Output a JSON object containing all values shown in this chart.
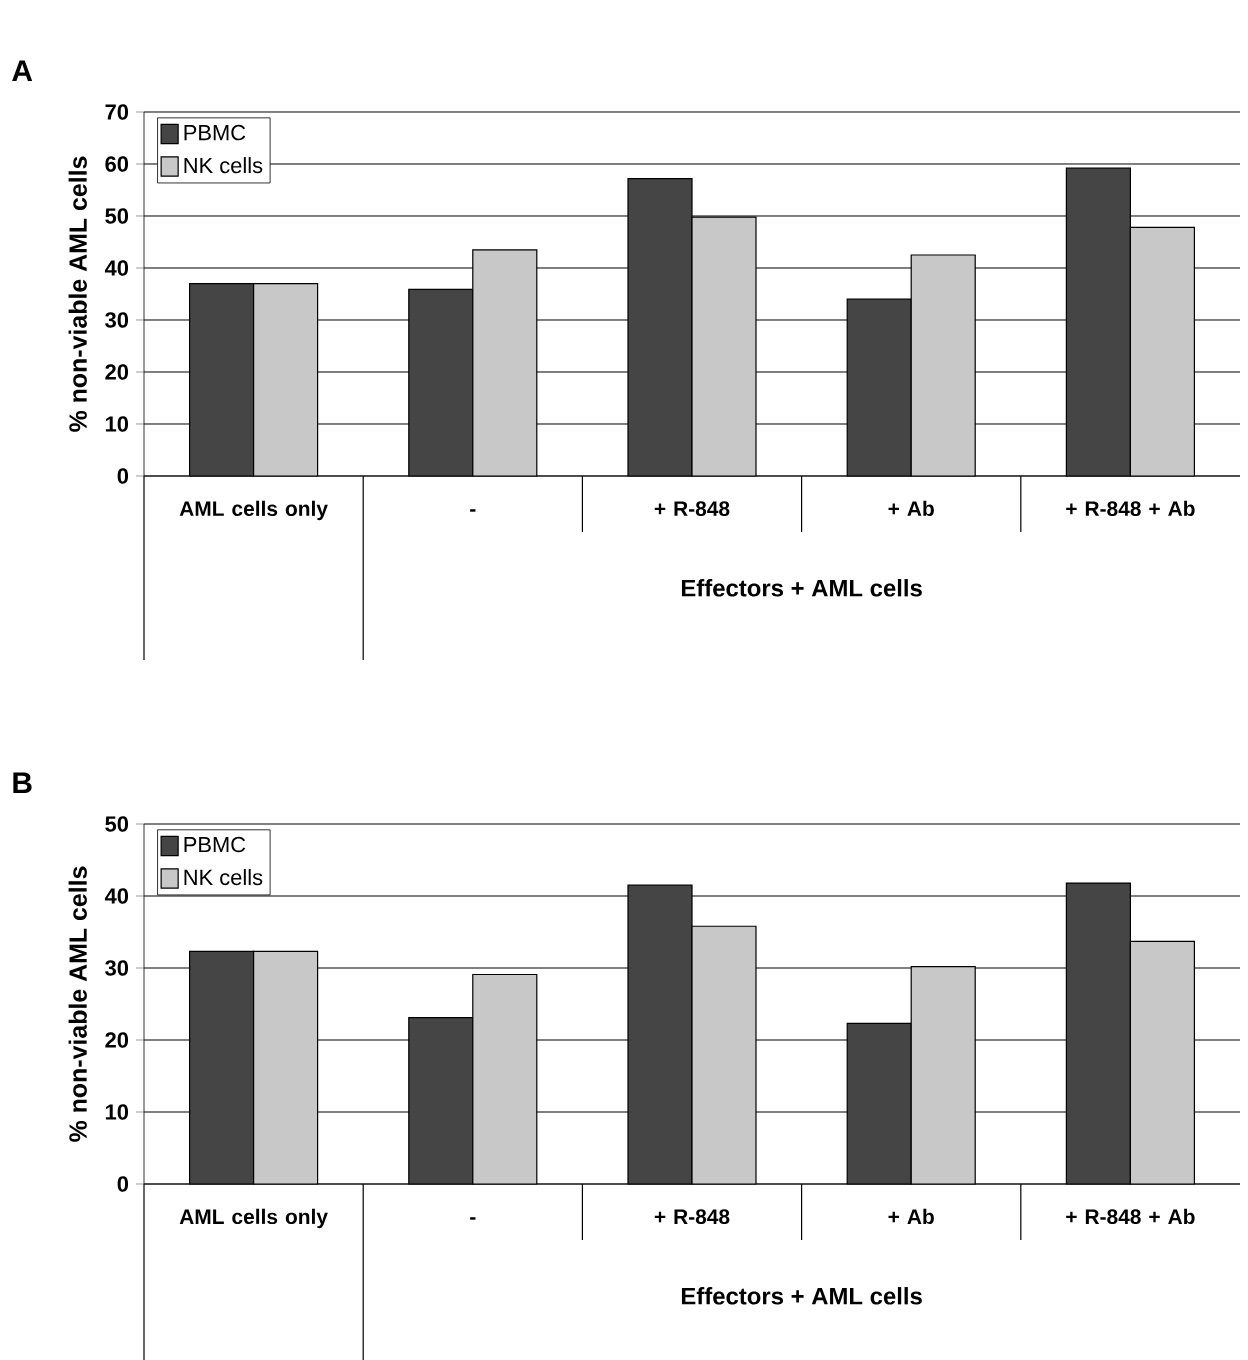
{
  "chart_data": [
    {
      "type": "bar",
      "title": "A",
      "categories": [
        "AML cells only",
        "-",
        "+ R-848",
        "+ Ab",
        "+ R-848 + Ab"
      ],
      "xlabel": "Effectors + AML cells",
      "ylabel": "% non-viable AML cells",
      "ylim": [
        0,
        70
      ],
      "yticks": [
        0,
        10,
        20,
        30,
        40,
        50,
        60,
        70
      ],
      "grid": "y",
      "legend": "top left",
      "series": [
        {
          "name": "PBMC",
          "color": "#454545",
          "values": [
            37.0,
            35.9,
            57.2,
            34.0,
            59.2
          ]
        },
        {
          "name": "NK cells",
          "color": "#c8c8c8",
          "values": [
            37.0,
            43.5,
            49.8,
            42.5,
            47.8
          ]
        }
      ]
    },
    {
      "type": "bar",
      "title": "B",
      "categories": [
        "AML cells only",
        "-",
        "+ R-848",
        "+ Ab",
        "+ R-848 + Ab"
      ],
      "xlabel": "Effectors + AML cells",
      "ylabel": "% non-viable AML cells",
      "ylim": [
        0,
        50
      ],
      "yticks": [
        0,
        10,
        20,
        30,
        40,
        50
      ],
      "grid": "y",
      "legend": "top left",
      "series": [
        {
          "name": "PBMC",
          "color": "#454545",
          "values": [
            32.3,
            23.1,
            41.5,
            22.3,
            41.8
          ]
        },
        {
          "name": "NK cells",
          "color": "#c8c8c8",
          "values": [
            32.3,
            29.1,
            35.8,
            30.2,
            33.7
          ]
        }
      ]
    }
  ]
}
